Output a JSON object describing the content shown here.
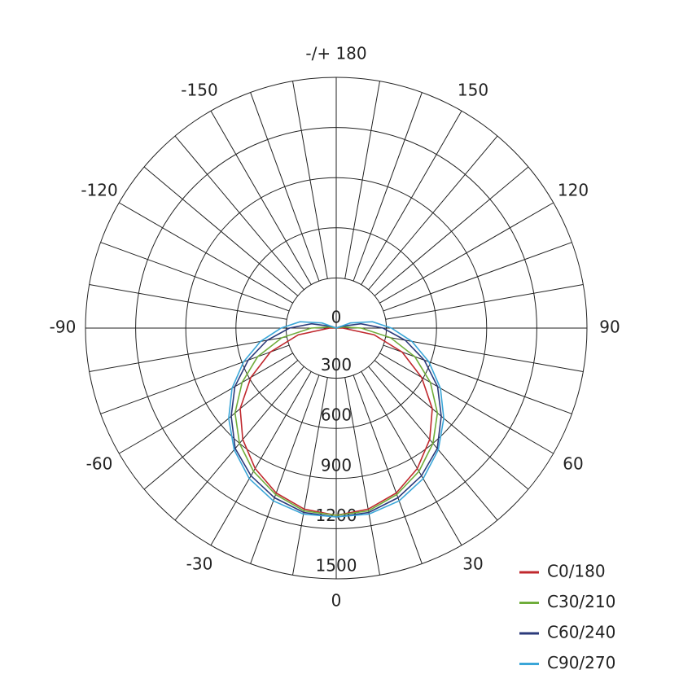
{
  "chart_data": {
    "type": "polar",
    "zero_direction": "bottom",
    "theta": [
      -120,
      -110,
      -100,
      -90,
      -80,
      -70,
      -60,
      -50,
      -40,
      -30,
      -20,
      -10,
      0,
      10,
      20,
      30,
      40,
      50,
      60,
      70,
      80,
      90,
      100,
      110,
      120
    ],
    "series": [
      {
        "name": "C0/180",
        "color": "#c0282d",
        "values": [
          0,
          0,
          0,
          40,
          230,
          420,
          590,
          750,
          870,
          970,
          1050,
          1100,
          1120,
          1100,
          1050,
          970,
          870,
          750,
          590,
          420,
          230,
          40,
          0,
          0,
          0
        ]
      },
      {
        "name": "C30/210",
        "color": "#6fad3b",
        "values": [
          0,
          0,
          40,
          150,
          330,
          500,
          650,
          790,
          900,
          990,
          1060,
          1110,
          1120,
          1110,
          1060,
          990,
          900,
          790,
          650,
          500,
          330,
          150,
          40,
          0,
          0
        ]
      },
      {
        "name": "C60/240",
        "color": "#2b3a7a",
        "values": [
          0,
          30,
          150,
          280,
          420,
          560,
          700,
          820,
          940,
          1020,
          1080,
          1120,
          1130,
          1120,
          1080,
          1020,
          940,
          820,
          700,
          560,
          420,
          280,
          150,
          30,
          0
        ]
      },
      {
        "name": "C90/270",
        "color": "#3aa6d8",
        "values": [
          0,
          90,
          220,
          330,
          460,
          590,
          720,
          840,
          950,
          1040,
          1100,
          1130,
          1130,
          1130,
          1100,
          1040,
          950,
          840,
          720,
          590,
          460,
          330,
          220,
          90,
          0
        ]
      }
    ],
    "rlim": [
      0,
      1500
    ],
    "rticks": [
      0,
      300,
      600,
      900,
      1200,
      1500
    ],
    "thetaticks": [
      0,
      30,
      60,
      90,
      120,
      150,
      {
        "value": 180,
        "label": "-/+ 180"
      },
      -150,
      -120,
      -90,
      -60,
      -30
    ],
    "thetagrid": [
      -170,
      -160,
      -150,
      -140,
      -130,
      -120,
      -110,
      -100,
      -90,
      -80,
      -70,
      -60,
      -50,
      -40,
      -30,
      -20,
      -10,
      0,
      10,
      20,
      30,
      40,
      50,
      60,
      70,
      80,
      90,
      100,
      110,
      120,
      130,
      140,
      150,
      160,
      170,
      180
    ],
    "grid": true
  }
}
